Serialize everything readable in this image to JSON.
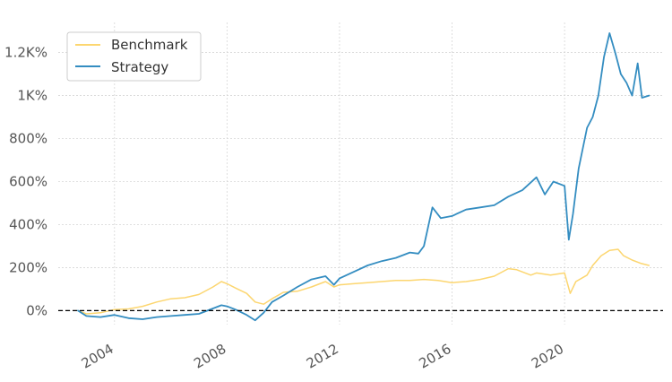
{
  "chart_data": {
    "type": "line",
    "title": "",
    "xlabel": "",
    "ylabel": "",
    "xlim": [
      2002.0,
      2023.5
    ],
    "ylim": [
      -65,
      1340
    ],
    "grid": true,
    "legend_position": "top-left",
    "zero_line": {
      "y": 0,
      "style": "dashed",
      "color": "#000000"
    },
    "x_ticks": [
      {
        "value": 2004,
        "label": "2004"
      },
      {
        "value": 2008,
        "label": "2008"
      },
      {
        "value": 2012,
        "label": "2012"
      },
      {
        "value": 2016,
        "label": "2016"
      },
      {
        "value": 2020,
        "label": "2020"
      }
    ],
    "y_ticks": [
      {
        "value": 0,
        "label": "0%"
      },
      {
        "value": 200,
        "label": "200%"
      },
      {
        "value": 400,
        "label": "400%"
      },
      {
        "value": 600,
        "label": "600%"
      },
      {
        "value": 800,
        "label": "800%"
      },
      {
        "value": 1000,
        "label": "1K%"
      },
      {
        "value": 1200,
        "label": "1.2K%"
      }
    ],
    "series": [
      {
        "name": "Benchmark",
        "color": "#fcd670",
        "points": [
          [
            2002.7,
            0
          ],
          [
            2003.0,
            -15
          ],
          [
            2003.5,
            -10
          ],
          [
            2004.0,
            5
          ],
          [
            2004.5,
            8
          ],
          [
            2005.0,
            20
          ],
          [
            2005.5,
            40
          ],
          [
            2006.0,
            55
          ],
          [
            2006.5,
            60
          ],
          [
            2007.0,
            75
          ],
          [
            2007.5,
            110
          ],
          [
            2007.8,
            135
          ],
          [
            2008.0,
            125
          ],
          [
            2008.3,
            105
          ],
          [
            2008.7,
            80
          ],
          [
            2009.0,
            40
          ],
          [
            2009.3,
            30
          ],
          [
            2009.6,
            55
          ],
          [
            2010.0,
            85
          ],
          [
            2010.5,
            90
          ],
          [
            2011.0,
            110
          ],
          [
            2011.5,
            135
          ],
          [
            2011.8,
            110
          ],
          [
            2012.0,
            120
          ],
          [
            2012.5,
            125
          ],
          [
            2013.0,
            130
          ],
          [
            2013.5,
            135
          ],
          [
            2014.0,
            140
          ],
          [
            2014.5,
            140
          ],
          [
            2015.0,
            145
          ],
          [
            2015.5,
            140
          ],
          [
            2016.0,
            130
          ],
          [
            2016.5,
            135
          ],
          [
            2017.0,
            145
          ],
          [
            2017.5,
            160
          ],
          [
            2018.0,
            195
          ],
          [
            2018.3,
            190
          ],
          [
            2018.8,
            165
          ],
          [
            2019.0,
            175
          ],
          [
            2019.5,
            165
          ],
          [
            2020.0,
            175
          ],
          [
            2020.2,
            80
          ],
          [
            2020.4,
            135
          ],
          [
            2020.8,
            165
          ],
          [
            2021.0,
            210
          ],
          [
            2021.3,
            255
          ],
          [
            2021.6,
            280
          ],
          [
            2021.9,
            285
          ],
          [
            2022.1,
            255
          ],
          [
            2022.4,
            235
          ],
          [
            2022.7,
            220
          ],
          [
            2023.0,
            210
          ]
        ]
      },
      {
        "name": "Strategy",
        "color": "#348dc1",
        "points": [
          [
            2002.7,
            0
          ],
          [
            2003.0,
            -25
          ],
          [
            2003.5,
            -30
          ],
          [
            2004.0,
            -20
          ],
          [
            2004.5,
            -35
          ],
          [
            2005.0,
            -40
          ],
          [
            2005.5,
            -30
          ],
          [
            2006.0,
            -25
          ],
          [
            2006.5,
            -20
          ],
          [
            2007.0,
            -15
          ],
          [
            2007.5,
            10
          ],
          [
            2007.8,
            25
          ],
          [
            2008.0,
            20
          ],
          [
            2008.3,
            5
          ],
          [
            2008.7,
            -20
          ],
          [
            2009.0,
            -45
          ],
          [
            2009.3,
            -10
          ],
          [
            2009.6,
            40
          ],
          [
            2010.0,
            70
          ],
          [
            2010.5,
            110
          ],
          [
            2011.0,
            145
          ],
          [
            2011.5,
            160
          ],
          [
            2011.8,
            120
          ],
          [
            2012.0,
            150
          ],
          [
            2012.5,
            180
          ],
          [
            2013.0,
            210
          ],
          [
            2013.5,
            230
          ],
          [
            2014.0,
            245
          ],
          [
            2014.5,
            270
          ],
          [
            2014.8,
            265
          ],
          [
            2015.0,
            300
          ],
          [
            2015.3,
            480
          ],
          [
            2015.6,
            430
          ],
          [
            2016.0,
            440
          ],
          [
            2016.5,
            470
          ],
          [
            2017.0,
            480
          ],
          [
            2017.5,
            490
          ],
          [
            2018.0,
            530
          ],
          [
            2018.5,
            560
          ],
          [
            2019.0,
            620
          ],
          [
            2019.3,
            540
          ],
          [
            2019.6,
            600
          ],
          [
            2020.0,
            580
          ],
          [
            2020.15,
            330
          ],
          [
            2020.3,
            450
          ],
          [
            2020.5,
            660
          ],
          [
            2020.8,
            850
          ],
          [
            2021.0,
            900
          ],
          [
            2021.2,
            1000
          ],
          [
            2021.4,
            1180
          ],
          [
            2021.6,
            1290
          ],
          [
            2021.8,
            1200
          ],
          [
            2022.0,
            1100
          ],
          [
            2022.2,
            1060
          ],
          [
            2022.4,
            1000
          ],
          [
            2022.6,
            1150
          ],
          [
            2022.75,
            990
          ],
          [
            2023.0,
            1000
          ]
        ]
      }
    ]
  }
}
